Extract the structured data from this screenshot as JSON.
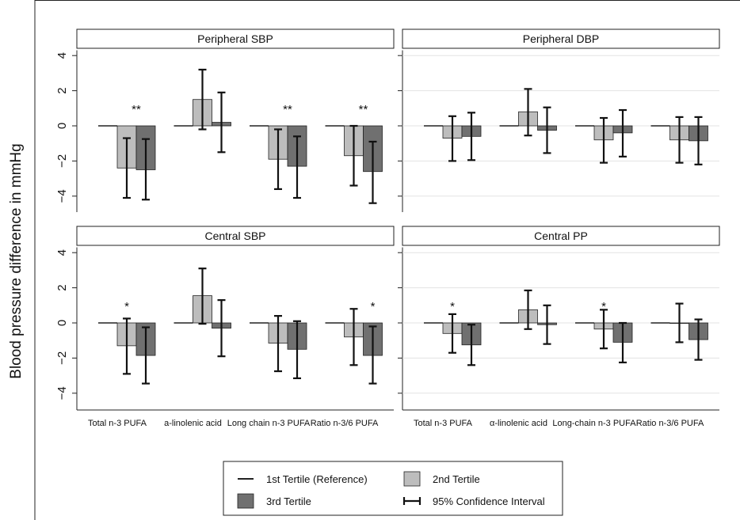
{
  "chart_data": {
    "type": "bar",
    "ylabel": "Blood pressure difference in mmHg",
    "yticks": [
      4,
      2,
      0,
      -2,
      -4
    ],
    "ylim": [
      -4.9,
      4.3
    ],
    "legend": {
      "position": "bottom",
      "items": [
        {
          "label": "1st Tertile (Reference)",
          "kind": "line"
        },
        {
          "label": "2nd Tertile",
          "kind": "swatch",
          "color": "#bdbdbd"
        },
        {
          "label": "3rd Tertile",
          "kind": "swatch",
          "color": "#707070"
        },
        {
          "label": "95% Confidence Interval",
          "kind": "errorbar"
        }
      ]
    },
    "colors": {
      "tertile2": "#bdbdbd",
      "tertile3": "#707070"
    },
    "panels": [
      {
        "title": "Peripheral SBP",
        "categories": [],
        "groups": [
          {
            "t2": -2.4,
            "t2_ci": [
              -4.1,
              -0.7
            ],
            "t3": -2.5,
            "t3_ci": [
              -4.2,
              -0.75
            ],
            "star": "**"
          },
          {
            "t2": 1.5,
            "t2_ci": [
              -0.2,
              3.2
            ],
            "t3": 0.2,
            "t3_ci": [
              -1.5,
              1.9
            ],
            "star": ""
          },
          {
            "t2": -1.9,
            "t2_ci": [
              -3.6,
              -0.2
            ],
            "t3": -2.3,
            "t3_ci": [
              -4.1,
              -0.6
            ],
            "star": "**"
          },
          {
            "t2": -1.7,
            "t2_ci": [
              -3.4,
              0.0
            ],
            "t3": -2.6,
            "t3_ci": [
              -4.4,
              -0.9
            ],
            "star": "**"
          }
        ]
      },
      {
        "title": "Peripheral DBP",
        "categories": [],
        "groups": [
          {
            "t2": -0.7,
            "t2_ci": [
              -2.0,
              0.55
            ],
            "t3": -0.6,
            "t3_ci": [
              -1.95,
              0.75
            ],
            "star": ""
          },
          {
            "t2": 0.8,
            "t2_ci": [
              -0.55,
              2.1
            ],
            "t3": -0.25,
            "t3_ci": [
              -1.55,
              1.05
            ],
            "star": ""
          },
          {
            "t2": -0.8,
            "t2_ci": [
              -2.1,
              0.45
            ],
            "t3": -0.4,
            "t3_ci": [
              -1.75,
              0.9
            ],
            "star": ""
          },
          {
            "t2": -0.8,
            "t2_ci": [
              -2.1,
              0.5
            ],
            "t3": -0.85,
            "t3_ci": [
              -2.2,
              0.5
            ],
            "star": ""
          }
        ]
      },
      {
        "title": "Central SBP",
        "categories": [
          "Total n-3 PUFA",
          "a-linolenic acid",
          "Long chain n-3 PUFA",
          "Ratio n-3/6 PUFA"
        ],
        "groups": [
          {
            "t2": -1.3,
            "t2_ci": [
              -2.9,
              0.25
            ],
            "t3": -1.85,
            "t3_ci": [
              -3.45,
              -0.25
            ],
            "star": "*",
            "star_pos": "t2"
          },
          {
            "t2": 1.55,
            "t2_ci": [
              -0.05,
              3.1
            ],
            "t3": -0.3,
            "t3_ci": [
              -1.9,
              1.3
            ],
            "star": ""
          },
          {
            "t2": -1.15,
            "t2_ci": [
              -2.75,
              0.4
            ],
            "t3": -1.5,
            "t3_ci": [
              -3.15,
              0.1
            ],
            "star": ""
          },
          {
            "t2": -0.8,
            "t2_ci": [
              -2.4,
              0.8
            ],
            "t3": -1.85,
            "t3_ci": [
              -3.45,
              -0.2
            ],
            "star": "*",
            "star_pos": "t3"
          }
        ]
      },
      {
        "title": "Central PP",
        "categories": [
          "Total n-3 PUFA",
          "α-linolenic acid",
          "Long-chain n-3 PUFA",
          "Ratio n-3/6 PUFA"
        ],
        "groups": [
          {
            "t2": -0.6,
            "t2_ci": [
              -1.7,
              0.5
            ],
            "t3": -1.25,
            "t3_ci": [
              -2.4,
              -0.1
            ],
            "star": "*",
            "star_pos": "t2"
          },
          {
            "t2": 0.75,
            "t2_ci": [
              -0.35,
              1.85
            ],
            "t3": -0.1,
            "t3_ci": [
              -1.2,
              1.0
            ],
            "star": ""
          },
          {
            "t2": -0.35,
            "t2_ci": [
              -1.45,
              0.75
            ],
            "t3": -1.1,
            "t3_ci": [
              -2.25,
              0.0
            ],
            "star": "*",
            "star_pos": "t2"
          },
          {
            "t2": 0.0,
            "t2_ci": [
              -1.1,
              1.1
            ],
            "t3": -0.95,
            "t3_ci": [
              -2.1,
              0.2
            ],
            "star": ""
          }
        ]
      }
    ]
  }
}
